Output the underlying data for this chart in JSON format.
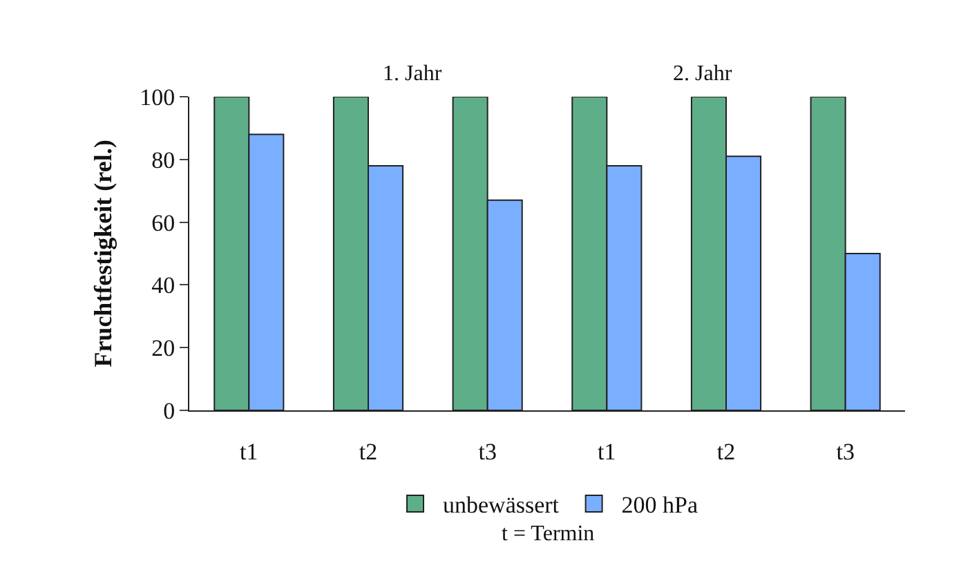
{
  "chart_data": {
    "type": "bar",
    "ylabel": "Fruchtfestigkeit (rel.)",
    "categories": [
      "t1",
      "t2",
      "t3",
      "t1",
      "t2",
      "t3"
    ],
    "series": [
      {
        "name": "unbewässert",
        "color": "#5fae8a",
        "values": [
          100,
          100,
          100,
          100,
          100,
          100
        ]
      },
      {
        "name": "200 hPa",
        "color": "#7aaeff",
        "values": [
          88,
          78,
          67,
          78,
          81,
          50
        ]
      }
    ],
    "ylim": [
      0,
      100
    ],
    "yticks": [
      0,
      20,
      40,
      60,
      80,
      100
    ],
    "legend": "bottom",
    "annotations": [
      "1. Jahr",
      "2. Jahr",
      "t = Termin"
    ]
  }
}
